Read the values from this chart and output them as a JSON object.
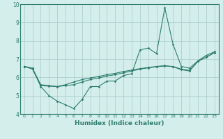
{
  "title": "",
  "xlabel": "Humidex (Indice chaleur)",
  "x": [
    0,
    1,
    2,
    3,
    4,
    5,
    6,
    7,
    8,
    9,
    10,
    11,
    12,
    13,
    14,
    15,
    16,
    17,
    18,
    19,
    20,
    21,
    22,
    23
  ],
  "line1": [
    6.6,
    6.5,
    5.5,
    5.0,
    4.7,
    4.5,
    4.3,
    4.8,
    5.5,
    5.5,
    5.8,
    5.8,
    6.1,
    6.2,
    7.5,
    7.6,
    7.3,
    9.8,
    7.8,
    6.6,
    6.5,
    6.9,
    7.2,
    7.4
  ],
  "line2": [
    6.6,
    6.5,
    5.6,
    5.55,
    5.5,
    5.55,
    5.6,
    5.75,
    5.88,
    5.97,
    6.07,
    6.15,
    6.25,
    6.35,
    6.45,
    6.52,
    6.58,
    6.62,
    6.6,
    6.45,
    6.38,
    6.88,
    7.1,
    7.35
  ],
  "line3": [
    6.6,
    6.45,
    5.55,
    5.52,
    5.5,
    5.6,
    5.75,
    5.88,
    5.97,
    6.05,
    6.15,
    6.22,
    6.32,
    6.4,
    6.48,
    6.54,
    6.6,
    6.64,
    6.58,
    6.42,
    6.35,
    6.88,
    7.1,
    7.35
  ],
  "line_color": "#2e7d6e",
  "bg_color": "#d4eeeb",
  "grid_color": "#aed0cc",
  "ylim": [
    4.0,
    10.0
  ],
  "xlim": [
    -0.5,
    23.5
  ],
  "yticks": [
    4,
    5,
    6,
    7,
    8,
    9,
    10
  ],
  "xticks": [
    0,
    1,
    2,
    3,
    4,
    5,
    6,
    7,
    8,
    9,
    10,
    11,
    12,
    13,
    14,
    15,
    16,
    17,
    18,
    19,
    20,
    21,
    22,
    23
  ]
}
